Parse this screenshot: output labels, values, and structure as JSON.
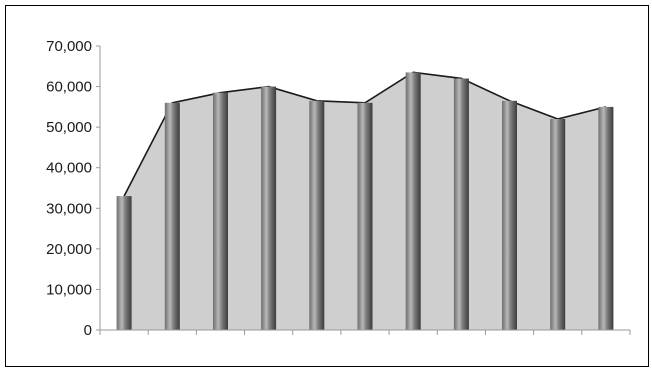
{
  "chart_data": {
    "type": "bar",
    "title": "",
    "xlabel": "",
    "ylabel": "",
    "categories": [
      "",
      "",
      "",
      "",
      "",
      "",
      "",
      "",
      "",
      "",
      ""
    ],
    "values": [
      33000,
      56000,
      58500,
      60000,
      56500,
      56000,
      63500,
      62000,
      56500,
      52000,
      55000
    ],
    "area_values": [
      33000,
      56000,
      58500,
      60000,
      56500,
      56000,
      63500,
      62000,
      56500,
      52000,
      55000
    ],
    "ylim": [
      0,
      70000
    ],
    "y_ticks": [
      "0",
      "10,000",
      "20,000",
      "30,000",
      "40,000",
      "50,000",
      "60,000",
      "70,000"
    ],
    "grid": false,
    "legend": "none",
    "colors": {
      "area_fill": "#cfcfcf",
      "area_line": "#1a1a1a",
      "bar_dark": "#4a4a4a",
      "bar_light": "#b5b5b5",
      "axis": "#9a9a9a"
    }
  }
}
